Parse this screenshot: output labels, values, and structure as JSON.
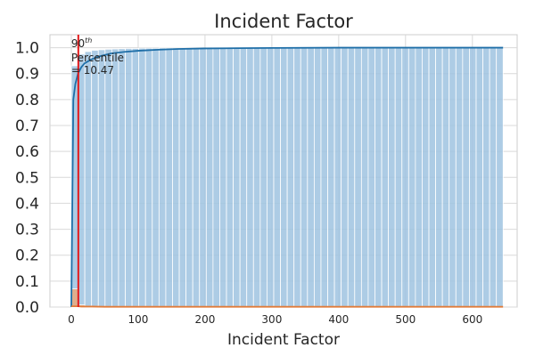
{
  "chart_data": {
    "type": "bar",
    "title": "Incident Factor",
    "xlabel": "Incident Factor",
    "ylabel": "",
    "xlim": [
      -32,
      667
    ],
    "ylim": [
      0,
      1.05
    ],
    "x_ticks": [
      0,
      100,
      200,
      300,
      400,
      500,
      600
    ],
    "y_ticks": [
      0.0,
      0.1,
      0.2,
      0.3,
      0.4,
      0.5,
      0.6,
      0.7,
      0.8,
      0.9,
      1.0
    ],
    "x_tick_labels": [
      "0",
      "100",
      "200",
      "300",
      "400",
      "500",
      "600"
    ],
    "y_tick_labels": [
      "0.0",
      "0.1",
      "0.2",
      "0.3",
      "0.4",
      "0.5",
      "0.6",
      "0.7",
      "0.8",
      "0.9",
      "1.0"
    ],
    "grid": true,
    "bin_range": [
      0,
      646
    ],
    "bin_count": 64,
    "series": [
      {
        "kind": "cumulative-histogram",
        "color": "#9fc3e0",
        "values": [
          0.93,
          0.975,
          0.985,
          0.99,
          0.992,
          0.994,
          0.995,
          0.996,
          0.997,
          0.997,
          0.998,
          0.998,
          0.998,
          0.999,
          0.999,
          0.999,
          0.999,
          0.999,
          0.999,
          0.999,
          1,
          1,
          1,
          1,
          1,
          1,
          1,
          1,
          1,
          1,
          1,
          1,
          1,
          1,
          1,
          1,
          1,
          1,
          1,
          1,
          1,
          1,
          1,
          1,
          1,
          1,
          1,
          1,
          1,
          1,
          1,
          1,
          1,
          1,
          1,
          1,
          1,
          1,
          1,
          1,
          1,
          1,
          1,
          1
        ]
      },
      {
        "kind": "density-histogram",
        "color": "#e8a87c",
        "values": [
          0.07,
          0.008,
          0.004,
          0.003,
          0.002,
          0.002,
          0.001,
          0.001,
          0.001,
          0.001,
          0.001,
          0.001,
          0.0005,
          0.0005,
          0.0005,
          0.0005,
          0.0005,
          0.0005,
          0.0005,
          0.0005,
          0,
          0,
          0,
          0,
          0,
          0,
          0,
          0,
          0,
          0,
          0,
          0,
          0,
          0,
          0,
          0,
          0,
          0,
          0,
          0,
          0,
          0,
          0,
          0,
          0,
          0,
          0,
          0,
          0,
          0,
          0,
          0,
          0,
          0,
          0,
          0,
          0,
          0,
          0,
          0,
          0,
          0,
          0,
          0
        ]
      },
      {
        "kind": "cdf-line",
        "color": "#1f6fa8",
        "x": [
          0,
          3,
          6,
          10,
          15,
          20,
          30,
          40,
          50,
          60,
          80,
          100,
          130,
          160,
          200,
          250,
          300,
          400,
          500,
          646
        ],
        "y": [
          0,
          0.8,
          0.86,
          0.9,
          0.925,
          0.94,
          0.955,
          0.965,
          0.972,
          0.978,
          0.984,
          0.988,
          0.992,
          0.995,
          0.997,
          0.998,
          0.999,
          1.0,
          1.0,
          1.0
        ]
      },
      {
        "kind": "density-line",
        "color": "#e07b39",
        "x": [
          0,
          5,
          10,
          15,
          20,
          30,
          50,
          100,
          200,
          300,
          400,
          500,
          646
        ],
        "y": [
          0.003,
          0.003,
          0.003,
          0.002,
          0.002,
          0.002,
          0.001,
          0.001,
          0.001,
          0.001,
          0.001,
          0.001,
          0.001
        ]
      }
    ],
    "percentile_line": {
      "x": 10.47,
      "color": "#e31a1c",
      "label_line1": "90",
      "label_sup": "th",
      "label_line2": "Percentile",
      "label_line3": "= 10.47"
    }
  }
}
